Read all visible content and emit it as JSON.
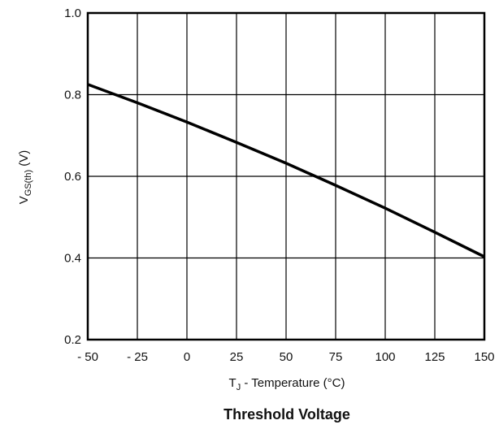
{
  "chart_data": {
    "type": "line",
    "title": "Threshold Voltage",
    "xlabel": {
      "main": "T",
      "sub": "J",
      "rest": " - Temperature (°C)"
    },
    "ylabel": {
      "main": "V",
      "sub": "GS(th)",
      "rest": " (V)"
    },
    "xlim": [
      -50,
      150
    ],
    "ylim": [
      0.2,
      1.0
    ],
    "x_ticks": [
      -50,
      -25,
      0,
      25,
      50,
      75,
      100,
      125,
      150
    ],
    "x_tick_labels": [
      "- 50",
      "- 25",
      "0",
      "25",
      "50",
      "75",
      "100",
      "125",
      "150"
    ],
    "y_ticks": [
      0.2,
      0.4,
      0.6,
      0.8,
      1.0
    ],
    "y_tick_labels": [
      "0.2",
      "0.4",
      "0.6",
      "0.8",
      "1.0"
    ],
    "grid": true,
    "series": [
      {
        "x": [
          -50,
          -25,
          0,
          25,
          50,
          75,
          100,
          125,
          150
        ],
        "y": [
          0.825,
          0.78,
          0.733,
          0.683,
          0.632,
          0.578,
          0.522,
          0.463,
          0.403
        ]
      }
    ],
    "colors": {
      "line": "#000000",
      "grid": "#000000",
      "frame": "#000000"
    }
  }
}
